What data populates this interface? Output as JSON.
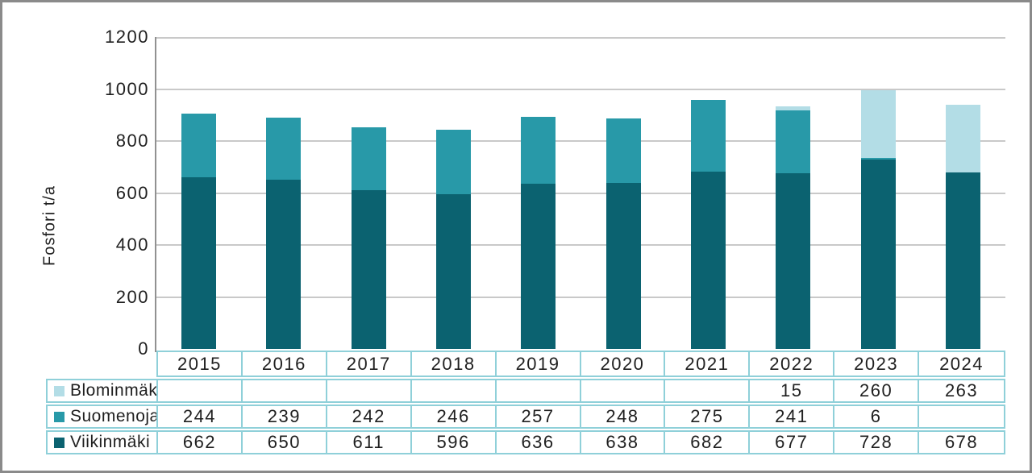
{
  "chart_data": {
    "type": "bar",
    "stacked": true,
    "title": "",
    "xlabel": "",
    "ylabel": "Fosfori t/a",
    "categories": [
      "2015",
      "2016",
      "2017",
      "2018",
      "2019",
      "2020",
      "2021",
      "2022",
      "2023",
      "2024"
    ],
    "series": [
      {
        "name": "Blominmäki",
        "color": "#B3DDE6",
        "values": [
          null,
          null,
          null,
          null,
          null,
          null,
          null,
          15,
          260,
          263
        ]
      },
      {
        "name": "Suomenoja",
        "color": "#2899A8",
        "values": [
          244,
          239,
          242,
          246,
          257,
          248,
          275,
          241,
          6,
          null
        ]
      },
      {
        "name": "Viikinmäki",
        "color": "#0B6270",
        "values": [
          662,
          650,
          611,
          596,
          636,
          638,
          682,
          677,
          728,
          678
        ]
      }
    ],
    "ylim": [
      0,
      1200
    ],
    "ytick_values": [
      0,
      200,
      400,
      600,
      800,
      1000,
      1200
    ],
    "ytick_labels": [
      "0",
      "200",
      "400",
      "600",
      "800",
      "1000",
      "1200"
    ],
    "grid": true,
    "legend_position": "table-left"
  },
  "styles": {
    "frame_border": "#8A8A8A",
    "gridline": "#C9C9C9",
    "axis_line": "#919191",
    "table_border": "#8FD0D9",
    "text": "#1F1F1F"
  }
}
